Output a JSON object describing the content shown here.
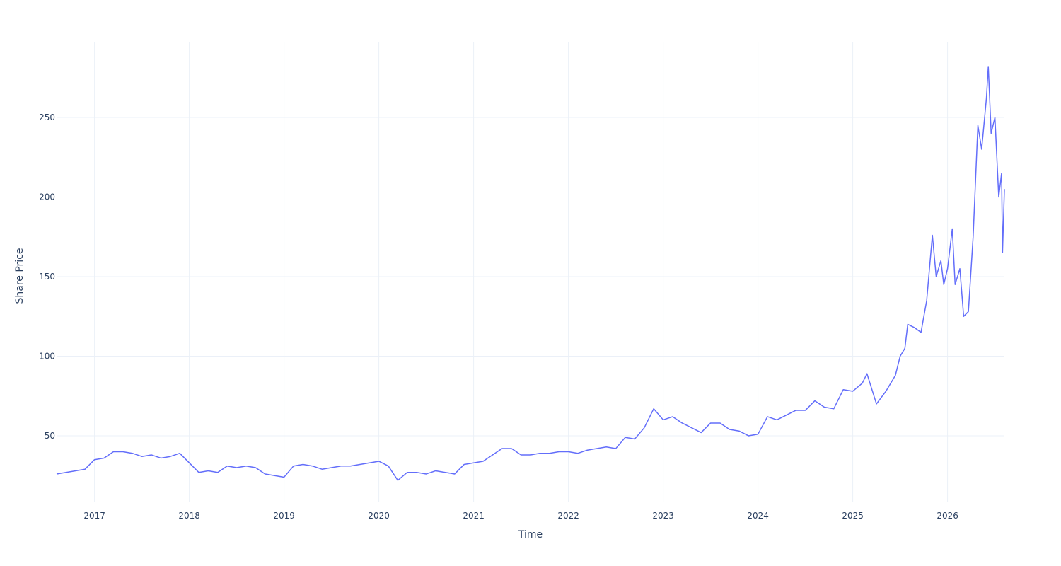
{
  "chart_data": {
    "type": "line",
    "xlabel": "Time",
    "ylabel": "Share Price",
    "xlim": [
      2016.6,
      2026.6
    ],
    "xticks": [
      2017,
      2018,
      2019,
      2020,
      2021,
      2022,
      2023,
      2024,
      2025,
      2026
    ],
    "ylim": [
      8.2,
      297.1
    ],
    "yticks": [
      50,
      100,
      150,
      200,
      250
    ],
    "grid": true,
    "x": [
      2016.6,
      2016.7,
      2016.8,
      2016.9,
      2017.0,
      2017.1,
      2017.2,
      2017.3,
      2017.4,
      2017.5,
      2017.6,
      2017.7,
      2017.8,
      2017.9,
      2018.0,
      2018.1,
      2018.2,
      2018.3,
      2018.4,
      2018.5,
      2018.6,
      2018.7,
      2018.8,
      2018.9,
      2019.0,
      2019.1,
      2019.2,
      2019.3,
      2019.4,
      2019.5,
      2019.6,
      2019.7,
      2019.8,
      2019.9,
      2020.0,
      2020.1,
      2020.2,
      2020.3,
      2020.4,
      2020.5,
      2020.6,
      2020.7,
      2020.8,
      2020.9,
      2021.0,
      2021.1,
      2021.2,
      2021.3,
      2021.4,
      2021.5,
      2021.6,
      2021.7,
      2021.8,
      2021.9,
      2022.0,
      2022.1,
      2022.2,
      2022.3,
      2022.4,
      2022.5,
      2022.6,
      2022.7,
      2022.8,
      2022.9,
      2023.0,
      2023.1,
      2023.2,
      2023.3,
      2023.4,
      2023.5,
      2023.6,
      2023.7,
      2023.8,
      2023.9,
      2024.0,
      2024.1,
      2024.2,
      2024.3,
      2024.4,
      2024.5,
      2024.6,
      2024.7,
      2024.8,
      2024.9,
      2025.0,
      2025.1,
      2025.15,
      2025.25,
      2025.35,
      2025.45,
      2025.5,
      2025.55,
      2025.58,
      2025.65,
      2025.72,
      2025.78,
      2025.84,
      2025.88,
      2025.93,
      2025.96,
      2026.0,
      2026.05,
      2026.08,
      2026.13,
      2026.17,
      2026.22,
      2026.27,
      2026.32,
      2026.36,
      2026.41,
      2026.43,
      2026.46,
      2026.5,
      2026.54,
      2026.57,
      2026.58,
      2026.6
    ],
    "series": [
      {
        "name": "Share Price",
        "color": "#636efa",
        "values": [
          26,
          27,
          28,
          29,
          35,
          36,
          40,
          40,
          39,
          37,
          38,
          36,
          37,
          39,
          33,
          27,
          28,
          27,
          31,
          30,
          31,
          30,
          26,
          25,
          24,
          31,
          32,
          31,
          29,
          30,
          31,
          31,
          32,
          33,
          34,
          31,
          22,
          27,
          27,
          26,
          28,
          27,
          26,
          32,
          33,
          34,
          38,
          42,
          42,
          38,
          38,
          39,
          39,
          40,
          40,
          39,
          41,
          42,
          43,
          42,
          49,
          48,
          55,
          67,
          60,
          62,
          58,
          55,
          52,
          58,
          58,
          54,
          53,
          50,
          51,
          62,
          60,
          63,
          66,
          66,
          72,
          68,
          67,
          79,
          78,
          83,
          89,
          70,
          78,
          88,
          100,
          105,
          120,
          118,
          115,
          135,
          176,
          150,
          160,
          145,
          155,
          180,
          145,
          155,
          125,
          128,
          175,
          245,
          230,
          262,
          282,
          240,
          250,
          200,
          215,
          165,
          205
        ]
      }
    ]
  }
}
